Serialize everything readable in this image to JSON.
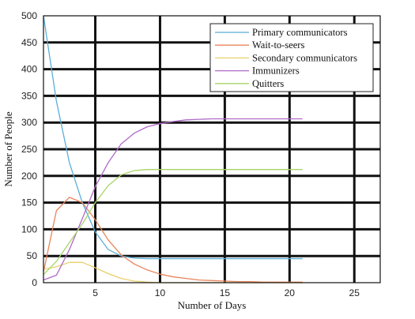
{
  "chart_data": {
    "type": "line",
    "title": "",
    "xlabel": "Number of Days",
    "ylabel": "Number of People",
    "xlim": [
      1,
      27
    ],
    "ylim": [
      0,
      500
    ],
    "x_ticks": [
      5,
      10,
      15,
      20,
      25
    ],
    "y_ticks": [
      0,
      50,
      100,
      150,
      200,
      250,
      300,
      350,
      400,
      450,
      500
    ],
    "grid": true,
    "legend_position": "top-right",
    "x": [
      1,
      2,
      3,
      4,
      5,
      6,
      7,
      8,
      9,
      10,
      11,
      12,
      13,
      14,
      15,
      16,
      17,
      18,
      19,
      20,
      21
    ],
    "series": [
      {
        "name": "Primary communicators",
        "color": "#5aaed8",
        "values": [
          500,
          340,
          225,
          150,
          95,
          62,
          50,
          46,
          45,
          45,
          45,
          45,
          45,
          45,
          45,
          45,
          45,
          45,
          45,
          45,
          45
        ]
      },
      {
        "name": "Wait-to-seers",
        "color": "#e8845a",
        "values": [
          20,
          135,
          160,
          150,
          118,
          80,
          52,
          35,
          24,
          16,
          11,
          8,
          5,
          4,
          3,
          2,
          2,
          1,
          1,
          1,
          1
        ]
      },
      {
        "name": "Secondary communicators",
        "color": "#e8d06a",
        "values": [
          25,
          30,
          38,
          38,
          28,
          17,
          8,
          3,
          1,
          0,
          0,
          0,
          0,
          0,
          0,
          0,
          0,
          0,
          0,
          0,
          0
        ]
      },
      {
        "name": "Immunizers",
        "color": "#b06ac8",
        "values": [
          5,
          14,
          62,
          120,
          180,
          225,
          260,
          280,
          292,
          298,
          302,
          305,
          306,
          307,
          307,
          307,
          307,
          307,
          307,
          307,
          307
        ]
      },
      {
        "name": "Quitters",
        "color": "#a8d46a",
        "values": [
          15,
          40,
          75,
          110,
          150,
          182,
          202,
          210,
          212,
          212,
          212,
          212,
          212,
          212,
          212,
          212,
          212,
          212,
          212,
          212,
          212
        ]
      }
    ]
  }
}
